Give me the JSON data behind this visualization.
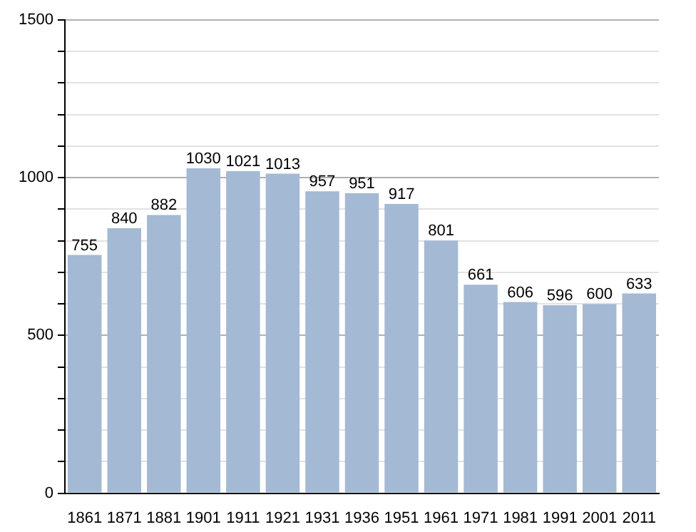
{
  "chart_data": {
    "type": "bar",
    "categories": [
      "1861",
      "1871",
      "1881",
      "1901",
      "1911",
      "1921",
      "1931",
      "1936",
      "1951",
      "1961",
      "1971",
      "1981",
      "1991",
      "2001",
      "2011"
    ],
    "values": [
      755,
      840,
      882,
      1030,
      1021,
      1013,
      957,
      951,
      917,
      801,
      661,
      606,
      596,
      600,
      633
    ],
    "color": "#a4b9d3",
    "ylim": [
      0,
      1500
    ],
    "yticks": [
      0,
      {
        "value": 100,
        "label": null
      },
      {
        "value": 200,
        "label": null
      },
      {
        "value": 300,
        "label": null
      },
      {
        "value": 400,
        "label": null
      },
      500,
      {
        "value": 600,
        "label": null
      },
      {
        "value": 700,
        "label": null
      },
      {
        "value": 800,
        "label": null
      },
      {
        "value": 900,
        "label": null
      },
      1000,
      {
        "value": 1100,
        "label": null
      },
      {
        "value": 1200,
        "label": null
      },
      {
        "value": 1300,
        "label": null
      },
      {
        "value": 1400,
        "label": null
      },
      1500
    ],
    "grid": "y",
    "data_labels": true,
    "legend": false
  }
}
